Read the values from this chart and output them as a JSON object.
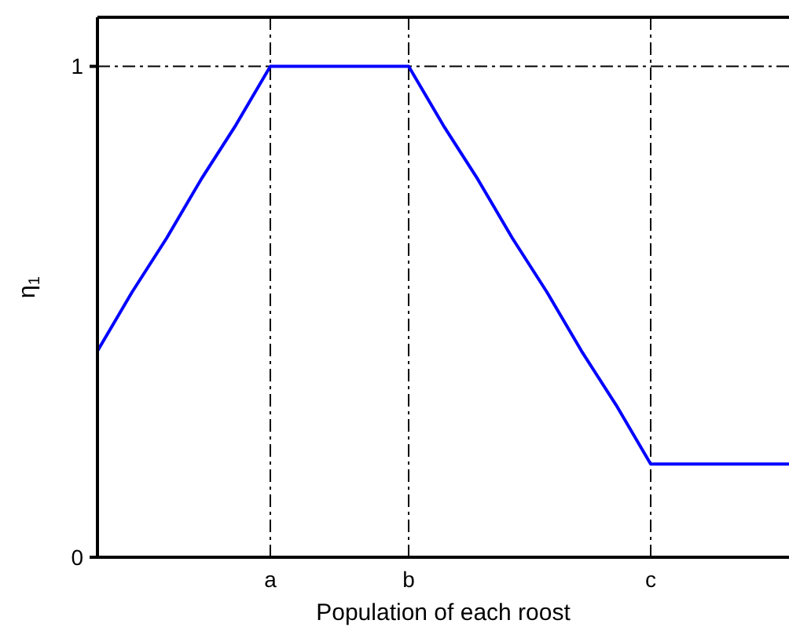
{
  "chart_data": {
    "type": "line",
    "xlabel": "Population of each roost",
    "ylabel": "η$_{1}$",
    "categories": [
      null,
      null,
      null,
      null,
      null,
      "a",
      null,
      null,
      null,
      "b",
      null,
      null,
      null,
      null,
      null,
      null,
      "c",
      null,
      null,
      null,
      null
    ],
    "series": [
      {
        "color": "#0000ff",
        "values": [
          0.42,
          0.54,
          0.65,
          0.77,
          0.88,
          1,
          1,
          1,
          1,
          1,
          0.88,
          0.77,
          0.65,
          0.54,
          0.42,
          0.31,
          0.19,
          0.19,
          0.19,
          0.19,
          0.19
        ]
      }
    ],
    "ylim": [
      0,
      1.1
    ],
    "yticks": [
      0,
      1
    ],
    "ref_lines": [
      {
        "axis": "x",
        "value": "a",
        "color": "#000000",
        "line_style": "dashdot"
      },
      {
        "axis": "x",
        "value": "b",
        "color": "#000000",
        "line_style": "dashdot"
      },
      {
        "axis": "x",
        "value": "c",
        "color": "#000000",
        "line_style": "dashdot"
      },
      {
        "axis": "y",
        "value": 1,
        "color": "#000000",
        "line_style": "dashdot"
      }
    ],
    "grid": false,
    "legend": false,
    "marker": "none",
    "line_style": "solid"
  }
}
